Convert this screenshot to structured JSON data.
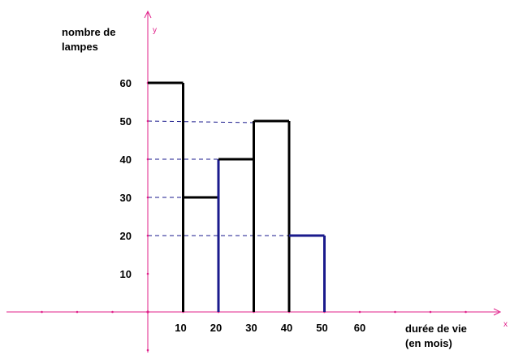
{
  "chart_data": {
    "type": "bar",
    "ylabel_lines": [
      "nombre de",
      "lampes"
    ],
    "xlabel_lines": [
      "durée de vie",
      "(en mois)"
    ],
    "x_axis_letter": "x",
    "y_axis_letter": "y",
    "x_ticks": [
      {
        "value": 10,
        "label": "10"
      },
      {
        "value": 20,
        "label": "20"
      },
      {
        "value": 30,
        "label": "30"
      },
      {
        "value": 40,
        "label": "40"
      },
      {
        "value": 50,
        "label": "50"
      },
      {
        "value": 60,
        "label": "60"
      }
    ],
    "y_ticks": [
      {
        "value": 10,
        "label": "10"
      },
      {
        "value": 20,
        "label": "20"
      },
      {
        "value": 30,
        "label": "30"
      },
      {
        "value": 40,
        "label": "40"
      },
      {
        "value": 50,
        "label": "50"
      },
      {
        "value": 60,
        "label": "60"
      }
    ],
    "bars": [
      {
        "x0": 0,
        "x1": 10,
        "value": 60
      },
      {
        "x0": 10,
        "x1": 20,
        "value": 30
      },
      {
        "x0": 20,
        "x1": 30,
        "value": 40
      },
      {
        "x0": 30,
        "x1": 40,
        "value": 50
      },
      {
        "x0": 40,
        "x1": 50,
        "value": 20
      }
    ],
    "dashed_guides": [
      50,
      40,
      30,
      20
    ],
    "xlim": [
      -40,
      100
    ],
    "ylim": [
      -12,
      80
    ],
    "colors": {
      "axis": "#e0208a",
      "bar": "#000000",
      "bar_alt": "#1a1a8c",
      "guide": "#1a1a8c"
    }
  }
}
